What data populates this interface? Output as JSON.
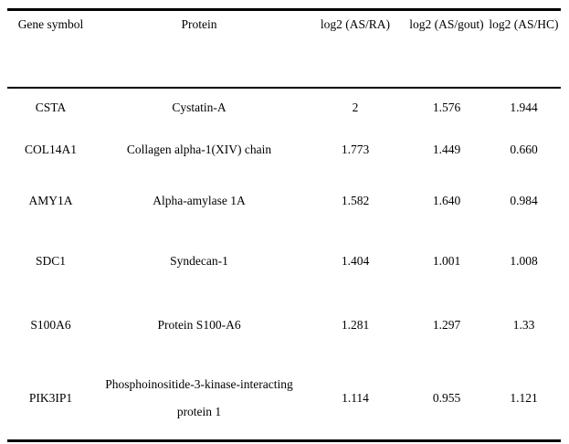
{
  "colors": {
    "background": "#ffffff",
    "text": "#000000",
    "border": "#000000"
  },
  "table": {
    "columns": [
      "Gene symbol",
      "Protein",
      "log2 (AS/RA)",
      "log2 (AS/gout)",
      "log2 (AS/HC)"
    ],
    "rows": [
      {
        "gene": "CSTA",
        "protein": "Cystatin-A",
        "as_ra": "2",
        "as_gout": "1.576",
        "as_hc": "1.944"
      },
      {
        "gene": "COL14A1",
        "protein": "Collagen alpha-1(XIV) chain",
        "as_ra": "1.773",
        "as_gout": "1.449",
        "as_hc": "0.660"
      },
      {
        "gene": "AMY1A",
        "protein": "Alpha-amylase 1A",
        "as_ra": "1.582",
        "as_gout": "1.640",
        "as_hc": "0.984"
      },
      {
        "gene": "SDC1",
        "protein": "Syndecan-1",
        "as_ra": "1.404",
        "as_gout": "1.001",
        "as_hc": "1.008"
      },
      {
        "gene": "S100A6",
        "protein": "Protein S100-A6",
        "as_ra": "1.281",
        "as_gout": "1.297",
        "as_hc": "1.33"
      },
      {
        "gene": "PIK3IP1",
        "protein": "Phosphoinositide-3-kinase-interacting protein 1",
        "as_ra": "1.114",
        "as_gout": "0.955",
        "as_hc": "1.121"
      }
    ]
  }
}
